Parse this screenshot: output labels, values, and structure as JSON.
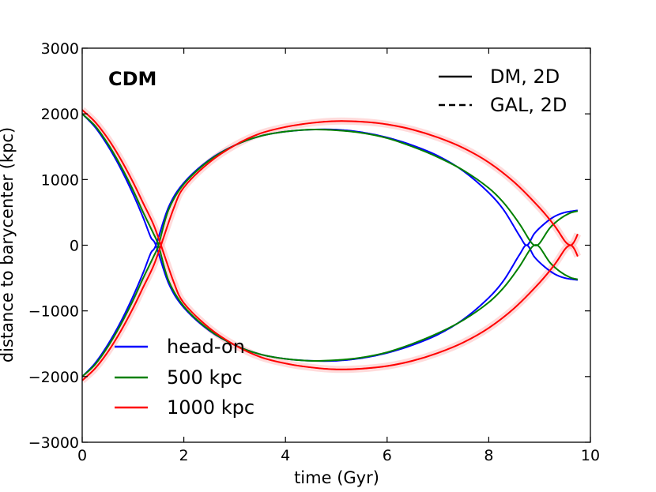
{
  "chart_data": {
    "type": "line",
    "title": "",
    "annotation": "CDM",
    "xlabel": "time (Gyr)",
    "ylabel": "distance to barycenter (kpc)",
    "xlim": [
      0,
      10
    ],
    "ylim": [
      -3000,
      3000
    ],
    "xticks": [
      0,
      2,
      4,
      6,
      8,
      10
    ],
    "xtick_labels": [
      "0",
      "2",
      "4",
      "6",
      "8",
      "10"
    ],
    "yticks": [
      -3000,
      -2000,
      -1000,
      0,
      1000,
      2000,
      3000
    ],
    "ytick_labels": [
      "−3000",
      "−2000",
      "−1000",
      "0",
      "1000",
      "2000",
      "3000"
    ],
    "grid": false,
    "style_legend": {
      "placement": "top-right",
      "entries": [
        {
          "label": "DM, 2D",
          "linestyle": "solid"
        },
        {
          "label": "GAL, 2D",
          "linestyle": "dashed"
        }
      ]
    },
    "color_legend": {
      "placement": "lower-left",
      "entries": [
        {
          "label": "head-on",
          "color": "#0000ff"
        },
        {
          "label": "500 kpc",
          "color": "#008000"
        },
        {
          "label": "1000 kpc",
          "color": "#ff0000"
        }
      ]
    },
    "series": [
      {
        "name": "head-on",
        "color": "#0000ff",
        "x": [
          0,
          0.25,
          0.5,
          0.75,
          1.0,
          1.2,
          1.35,
          1.45,
          1.7,
          2.0,
          2.5,
          3.0,
          3.5,
          4.0,
          4.5,
          5.0,
          5.5,
          6.0,
          6.5,
          7.0,
          7.5,
          8.0,
          8.3,
          8.6,
          8.75,
          8.9,
          9.1,
          9.3,
          9.5,
          9.75
        ],
        "y": [
          2000,
          1800,
          1520,
          1180,
          780,
          420,
          120,
          0,
          -580,
          -950,
          -1300,
          -1520,
          -1660,
          -1730,
          -1760,
          -1760,
          -1720,
          -1640,
          -1520,
          -1360,
          -1130,
          -800,
          -530,
          -150,
          0,
          -180,
          -330,
          -440,
          -500,
          -530
        ]
      },
      {
        "name": "500 kpc",
        "color": "#008000",
        "x": [
          0,
          0.25,
          0.5,
          0.75,
          1.0,
          1.2,
          1.4,
          1.5,
          1.7,
          2.0,
          2.5,
          3.0,
          3.5,
          4.0,
          4.5,
          5.0,
          5.5,
          6.0,
          6.5,
          7.0,
          7.5,
          8.0,
          8.3,
          8.6,
          8.8,
          8.9,
          9.0,
          9.2,
          9.4,
          9.6,
          9.75
        ],
        "y": [
          2000,
          1820,
          1550,
          1220,
          840,
          500,
          180,
          0,
          -540,
          -930,
          -1290,
          -1520,
          -1660,
          -1730,
          -1760,
          -1750,
          -1710,
          -1630,
          -1500,
          -1340,
          -1140,
          -870,
          -640,
          -330,
          -80,
          0,
          -30,
          -260,
          -400,
          -490,
          -520
        ]
      },
      {
        "name": "1000 kpc",
        "color": "#ff0000",
        "x": [
          0,
          0.25,
          0.5,
          0.75,
          1.0,
          1.2,
          1.4,
          1.55,
          1.8,
          2.0,
          2.5,
          3.0,
          3.5,
          4.0,
          4.5,
          5.0,
          5.5,
          6.0,
          6.5,
          7.0,
          7.5,
          8.0,
          8.5,
          9.0,
          9.3,
          9.5,
          9.6,
          9.65,
          9.7,
          9.75
        ],
        "y": [
          2060,
          1880,
          1630,
          1320,
          960,
          640,
          320,
          0,
          -560,
          -880,
          -1260,
          -1520,
          -1700,
          -1800,
          -1860,
          -1890,
          -1880,
          -1840,
          -1760,
          -1640,
          -1480,
          -1260,
          -960,
          -570,
          -290,
          -60,
          0,
          -20,
          -80,
          -170
        ]
      }
    ]
  }
}
